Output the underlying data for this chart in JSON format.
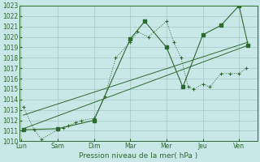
{
  "title": "",
  "xlabel": "Pression niveau de la mer( hPa )",
  "bg_color": "#c8e8e8",
  "grid_color": "#a8c8c8",
  "line_color": "#2d6a2d",
  "ylim": [
    1010,
    1023
  ],
  "yticks": [
    1010,
    1011,
    1012,
    1013,
    1014,
    1015,
    1016,
    1017,
    1018,
    1019,
    1020,
    1021,
    1022,
    1023
  ],
  "x_labels": [
    "Lun",
    "Sam",
    "Dim",
    "Mar",
    "Mer",
    "Jeu",
    "Ven"
  ],
  "x_positions": [
    0,
    1,
    2,
    3,
    4,
    5,
    6
  ],
  "xlim": [
    -0.05,
    6.5
  ],
  "series1_x": [
    0.05,
    0.35,
    0.55,
    1.0,
    1.15,
    1.3,
    1.5,
    1.65,
    2.0,
    2.3,
    2.6,
    3.0,
    3.2,
    3.5,
    4.0,
    4.2,
    4.4,
    4.6,
    4.75,
    5.0,
    5.2,
    5.5,
    5.75,
    6.0,
    6.2
  ],
  "series1_y": [
    1013.3,
    1011.1,
    1010.2,
    1011.1,
    1011.3,
    1011.5,
    1011.8,
    1012.0,
    1012.2,
    1014.3,
    1018.0,
    1019.5,
    1020.5,
    1020.0,
    1021.5,
    1019.5,
    1018.0,
    1015.2,
    1015.0,
    1015.5,
    1015.2,
    1016.5,
    1016.5,
    1016.5,
    1017.0
  ],
  "series2_x": [
    0.05,
    1.0,
    2.0,
    3.0,
    3.4,
    4.0,
    4.45,
    5.0,
    5.5,
    6.0,
    6.25
  ],
  "series2_y": [
    1011.1,
    1011.2,
    1012.0,
    1019.8,
    1021.5,
    1019.0,
    1015.2,
    1020.2,
    1021.1,
    1023.0,
    1019.2
  ],
  "trend_x": [
    0.05,
    6.25
  ],
  "trend_y": [
    1011.2,
    1019.2
  ],
  "trend2_x": [
    0.05,
    6.25
  ],
  "trend2_y": [
    1012.5,
    1019.5
  ]
}
